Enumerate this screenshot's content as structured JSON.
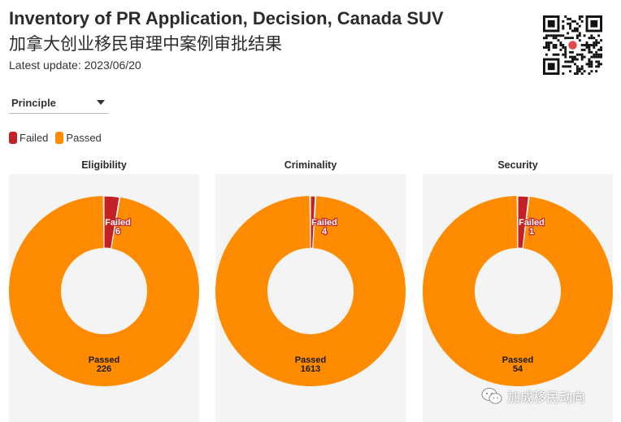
{
  "header": {
    "title": "Inventory of PR Application, Decision, Canada SUV",
    "subtitle": "加拿大创业移民审理中案例审批结果",
    "update": "Latest update: 2023/06/20"
  },
  "filter": {
    "selected": "Principle"
  },
  "colors": {
    "failed": "#c42025",
    "passed": "#ff8c00",
    "panel_bg": "#f4f4f4"
  },
  "watermark": {
    "text": "加成移民动向",
    "icon": "wechat-icon"
  },
  "chart_data": [
    {
      "type": "pie",
      "title": "Eligibility",
      "legend": [
        "Failed",
        "Passed"
      ],
      "slices": [
        {
          "label": "Failed",
          "value": 6
        },
        {
          "label": "Passed",
          "value": 226
        }
      ]
    },
    {
      "type": "pie",
      "title": "Criminality",
      "legend": [
        "Failed",
        "Passed"
      ],
      "slices": [
        {
          "label": "Failed",
          "value": 4
        },
        {
          "label": "Passed",
          "value": 1613
        }
      ]
    },
    {
      "type": "pie",
      "title": "Security",
      "legend": [
        "Failed",
        "Passed"
      ],
      "slices": [
        {
          "label": "Failed",
          "value": 1
        },
        {
          "label": "Passed",
          "value": 54
        }
      ]
    }
  ]
}
